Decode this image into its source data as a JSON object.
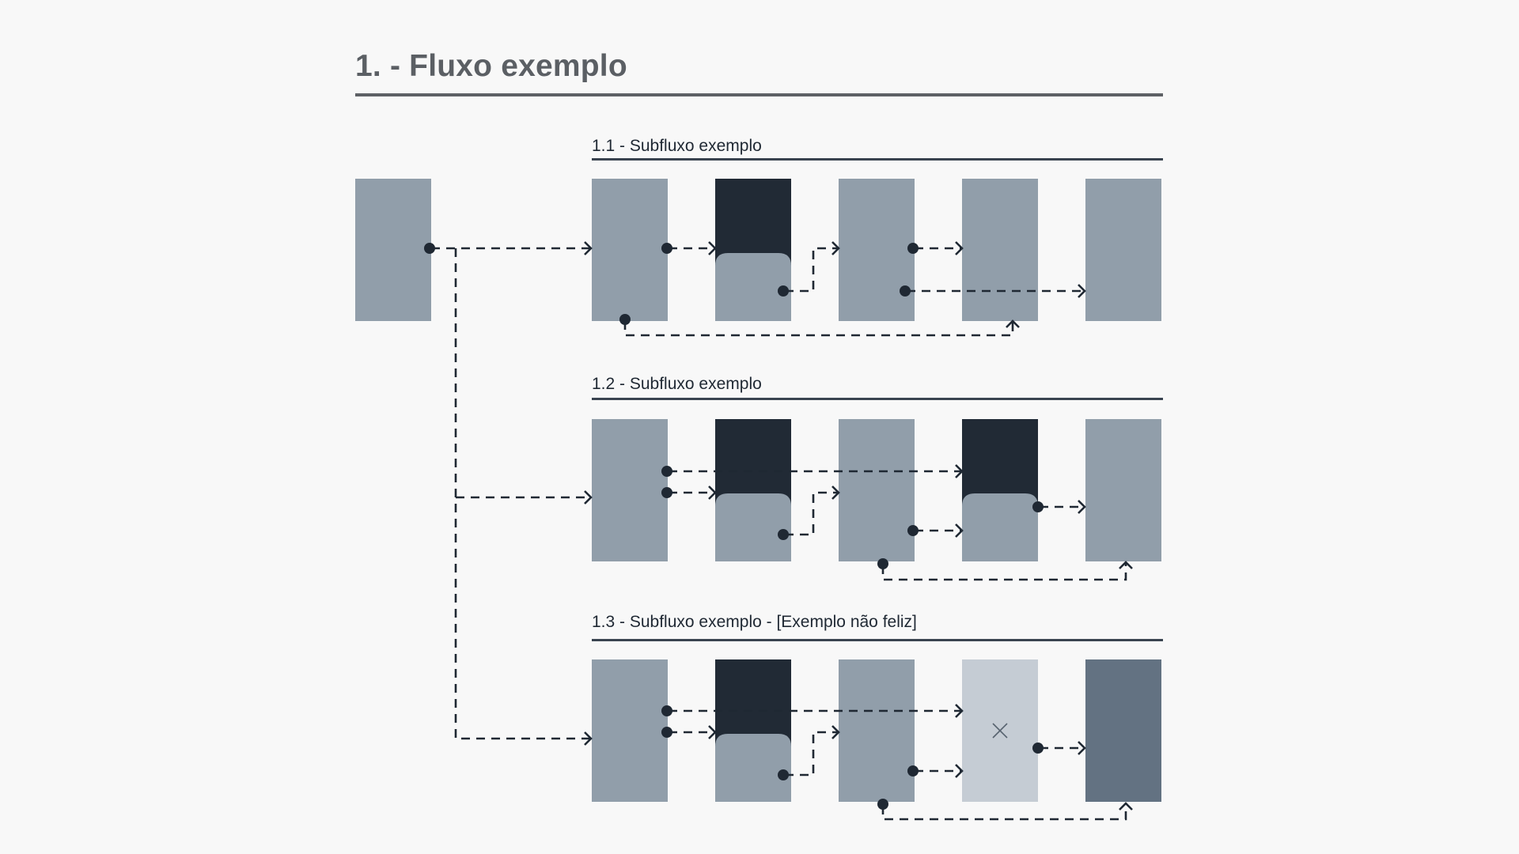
{
  "page_title": "1. - Fluxo exemplo",
  "subflows": [
    {
      "title": "1.1 - Subfluxo exemplo",
      "screens": [
        "screen",
        "screen-with-dark-header",
        "screen",
        "screen",
        "screen"
      ]
    },
    {
      "title": "1.2 - Subfluxo exemplo",
      "screens": [
        "screen",
        "screen-with-dark-header",
        "screen",
        "screen-with-dark-header",
        "screen"
      ]
    },
    {
      "title": "1.3 - Subfluxo exemplo - [Exemplo não feliz]",
      "screens": [
        "screen",
        "screen-with-dark-header",
        "screen",
        "screen-disabled",
        "screen-dark"
      ]
    }
  ],
  "colors": {
    "background": "#f8f8f8",
    "screen": "#919eaa",
    "screen_dark_header": "#212a35",
    "screen_disabled": "#c5ccd4",
    "screen_dark": "#637282",
    "connector": "#1f2833",
    "title": "#5b5f64"
  },
  "icons": {
    "disabled_screen_mark": "close-icon"
  }
}
